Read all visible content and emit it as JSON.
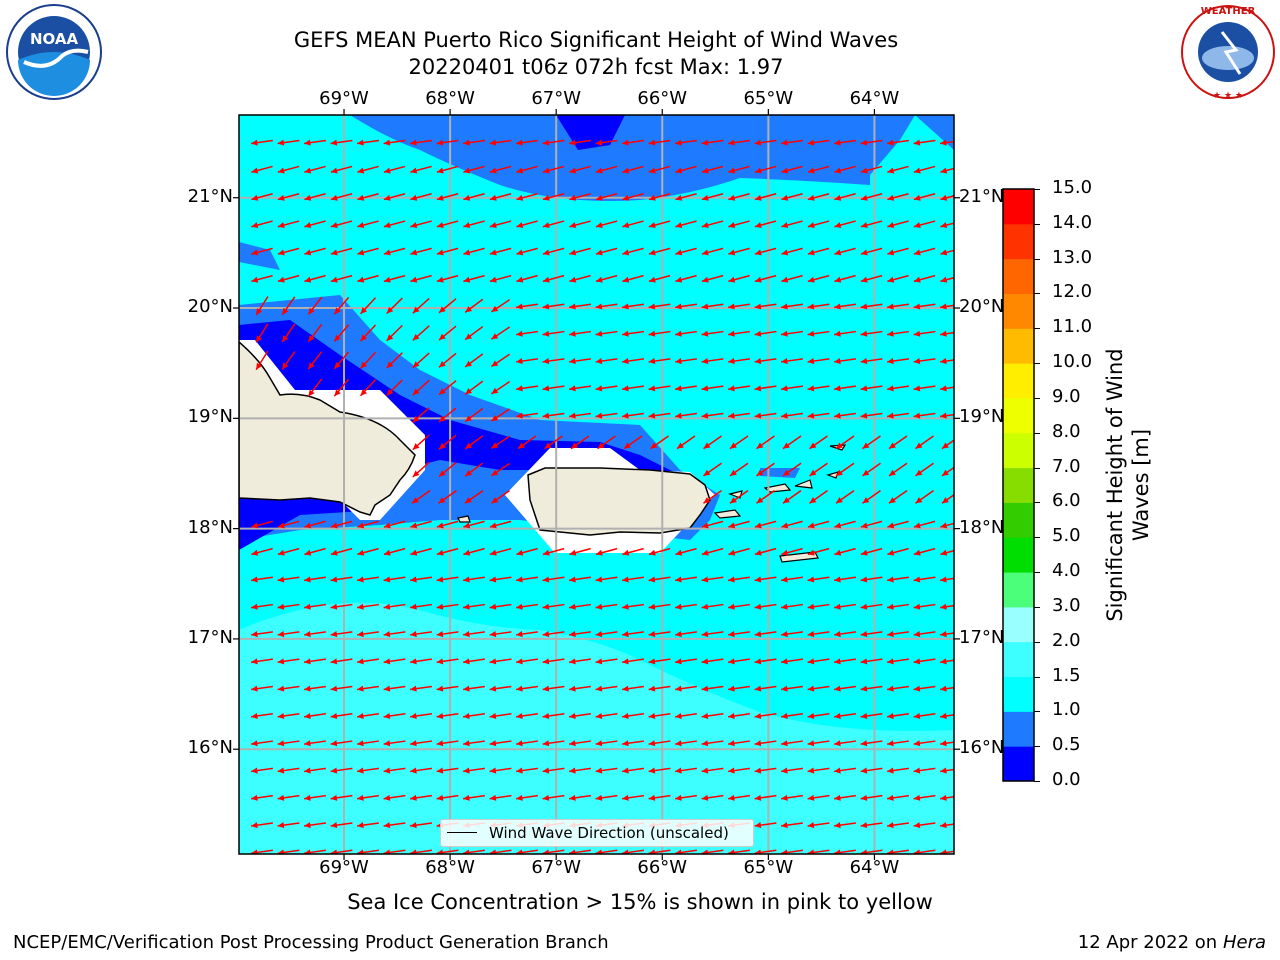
{
  "title": {
    "line1": "GEFS MEAN Puerto Rico Significant Height of Wind Waves",
    "line2": "20220401 t06z 072h fcst   Max: 1.97"
  },
  "logos": {
    "left": "noaa-logo",
    "right": "nws-logo",
    "left_text": "NOAA",
    "right_text": "NATIONAL WEATHER SERVICE"
  },
  "map": {
    "lon_ticks": [
      "69°W",
      "68°W",
      "67°W",
      "66°W",
      "65°W",
      "64°W"
    ],
    "lat_ticks": [
      "21°N",
      "20°N",
      "19°N",
      "18°N",
      "17°N",
      "16°N"
    ],
    "lon_range": [
      -69.99,
      -63.25
    ],
    "lat_range": [
      15.05,
      21.75
    ],
    "legend_label": "Wind Wave Direction (unscaled)",
    "arrow_color": "#ff0000",
    "land_color": "#efecdc",
    "grid_color": "#b0b0b0"
  },
  "colorbar": {
    "label": "Significant Height of Wind Waves [m]",
    "ticks": [
      "0.0",
      "0.5",
      "1.0",
      "1.5",
      "2.0",
      "3.0",
      "4.0",
      "5.0",
      "6.0",
      "7.0",
      "8.0",
      "9.0",
      "10.0",
      "11.0",
      "12.0",
      "13.0",
      "14.0",
      "15.0"
    ],
    "colors": [
      "#0000ff",
      "#1e7bff",
      "#00ffff",
      "#3dffff",
      "#99ffff",
      "#4cff7a",
      "#00dd00",
      "#33cc00",
      "#88dd00",
      "#ccff00",
      "#eeff00",
      "#ffee00",
      "#ffbb00",
      "#ff8800",
      "#ff6600",
      "#ff3300",
      "#ff0000"
    ]
  },
  "subtitle": "Sea Ice Concentration > 15% is shown in pink to yellow",
  "footer": {
    "left": "NCEP/EMC/Verification Post Processing Product Generation Branch",
    "right_prefix": "12 Apr 2022 on ",
    "right_host": "Hera"
  }
}
